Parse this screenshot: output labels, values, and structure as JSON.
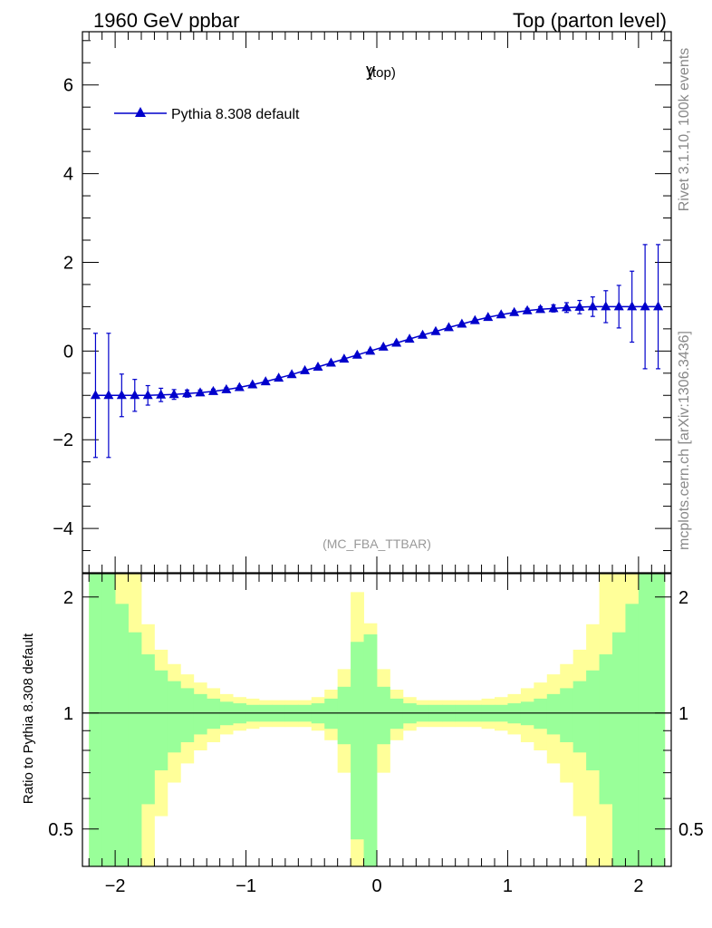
{
  "header": {
    "left": "1960 GeV ppbar",
    "right": "Top (parton level)"
  },
  "side_text": {
    "rivet": "Rivet 3.1.10,  100k events",
    "site": "mcplots.cern.ch [arXiv:1306.3436]"
  },
  "chart_data": [
    {
      "type": "line",
      "title_main": "y",
      "title_sub": "(top)",
      "analysis_label": "(MC_FBA_TTBAR)",
      "xlim": [
        -2.25,
        2.25
      ],
      "ylim": [
        -5,
        7.2
      ],
      "y_ticks": [
        -4,
        -2,
        0,
        2,
        4,
        6
      ],
      "y_tick_labels": [
        "−4",
        "−2",
        "0",
        "2",
        "4",
        "6"
      ],
      "series": [
        {
          "name": "Pythia 8.308 default",
          "color": "#0000cc",
          "marker": "triangle",
          "x": [
            -2.15,
            -2.05,
            -1.95,
            -1.85,
            -1.75,
            -1.65,
            -1.55,
            -1.45,
            -1.35,
            -1.25,
            -1.15,
            -1.05,
            -0.95,
            -0.85,
            -0.75,
            -0.65,
            -0.55,
            -0.45,
            -0.35,
            -0.25,
            -0.15,
            -0.05,
            0.05,
            0.15,
            0.25,
            0.35,
            0.45,
            0.55,
            0.65,
            0.75,
            0.85,
            0.95,
            1.05,
            1.15,
            1.25,
            1.35,
            1.45,
            1.55,
            1.65,
            1.75,
            1.85,
            1.95,
            2.05,
            2.15
          ],
          "y": [
            -1.0,
            -1.0,
            -1.0,
            -1.0,
            -1.0,
            -0.99,
            -0.98,
            -0.96,
            -0.94,
            -0.91,
            -0.87,
            -0.82,
            -0.76,
            -0.69,
            -0.61,
            -0.53,
            -0.44,
            -0.36,
            -0.27,
            -0.18,
            -0.09,
            0.0,
            0.09,
            0.18,
            0.27,
            0.36,
            0.44,
            0.53,
            0.61,
            0.69,
            0.76,
            0.82,
            0.87,
            0.91,
            0.94,
            0.96,
            0.98,
            0.99,
            1.0,
            1.0,
            1.0,
            1.0,
            1.0,
            1.0
          ],
          "yerr": [
            1.4,
            1.4,
            0.48,
            0.36,
            0.22,
            0.15,
            0.11,
            0.08,
            0.06,
            0.05,
            0.04,
            0.035,
            0.03,
            0.03,
            0.03,
            0.03,
            0.03,
            0.03,
            0.03,
            0.03,
            0.03,
            0.03,
            0.03,
            0.03,
            0.03,
            0.03,
            0.03,
            0.03,
            0.03,
            0.03,
            0.03,
            0.035,
            0.04,
            0.05,
            0.06,
            0.08,
            0.11,
            0.15,
            0.22,
            0.36,
            0.48,
            0.8,
            1.4,
            1.4
          ]
        }
      ]
    },
    {
      "type": "area",
      "ylabel": "Ratio to Pythia 8.308 default",
      "xlim": [
        -2.25,
        2.25
      ],
      "ylim": [
        0.4,
        2.3
      ],
      "log_y": true,
      "x_ticks": [
        -2,
        -1,
        0,
        1,
        2
      ],
      "x_tick_labels": [
        "−2",
        "−1",
        "0",
        "1",
        "2"
      ],
      "y_ticks": [
        0.5,
        1,
        2
      ],
      "y_tick_labels": [
        "0.5",
        "1",
        "2"
      ],
      "reference_line": 1,
      "band_colors": {
        "inner": "#99ff99",
        "outer": "#ffff99"
      },
      "bins": [
        -2.2,
        -2.1,
        -2.0,
        -1.9,
        -1.8,
        -1.7,
        -1.6,
        -1.5,
        -1.4,
        -1.3,
        -1.2,
        -1.1,
        -1.0,
        -0.9,
        -0.8,
        -0.7,
        -0.6,
        -0.5,
        -0.4,
        -0.3,
        -0.2,
        -0.1,
        0.0,
        0.1,
        0.2,
        0.3,
        0.4,
        0.5,
        0.6,
        0.7,
        0.8,
        0.9,
        1.0,
        1.1,
        1.2,
        1.3,
        1.4,
        1.5,
        1.6,
        1.7,
        1.8,
        1.9,
        2.0,
        2.1,
        2.2
      ],
      "inner_err": [
        1.4,
        1.4,
        0.92,
        0.62,
        0.42,
        0.29,
        0.21,
        0.16,
        0.12,
        0.09,
        0.07,
        0.06,
        0.05,
        0.05,
        0.05,
        0.05,
        0.05,
        0.06,
        0.09,
        0.17,
        0.53,
        0.6,
        0.17,
        0.09,
        0.06,
        0.05,
        0.05,
        0.05,
        0.05,
        0.05,
        0.05,
        0.05,
        0.06,
        0.07,
        0.09,
        0.12,
        0.16,
        0.21,
        0.29,
        0.42,
        0.62,
        0.92,
        1.4,
        1.4
      ],
      "outer_err": [
        1.4,
        1.4,
        1.4,
        1.4,
        0.7,
        0.46,
        0.34,
        0.26,
        0.2,
        0.16,
        0.12,
        0.1,
        0.09,
        0.08,
        0.08,
        0.08,
        0.08,
        0.1,
        0.15,
        0.3,
        1.06,
        0.71,
        0.3,
        0.15,
        0.1,
        0.08,
        0.08,
        0.08,
        0.08,
        0.08,
        0.09,
        0.1,
        0.12,
        0.16,
        0.2,
        0.26,
        0.34,
        0.46,
        0.7,
        1.4,
        1.4,
        1.4,
        1.4,
        1.4
      ]
    }
  ]
}
